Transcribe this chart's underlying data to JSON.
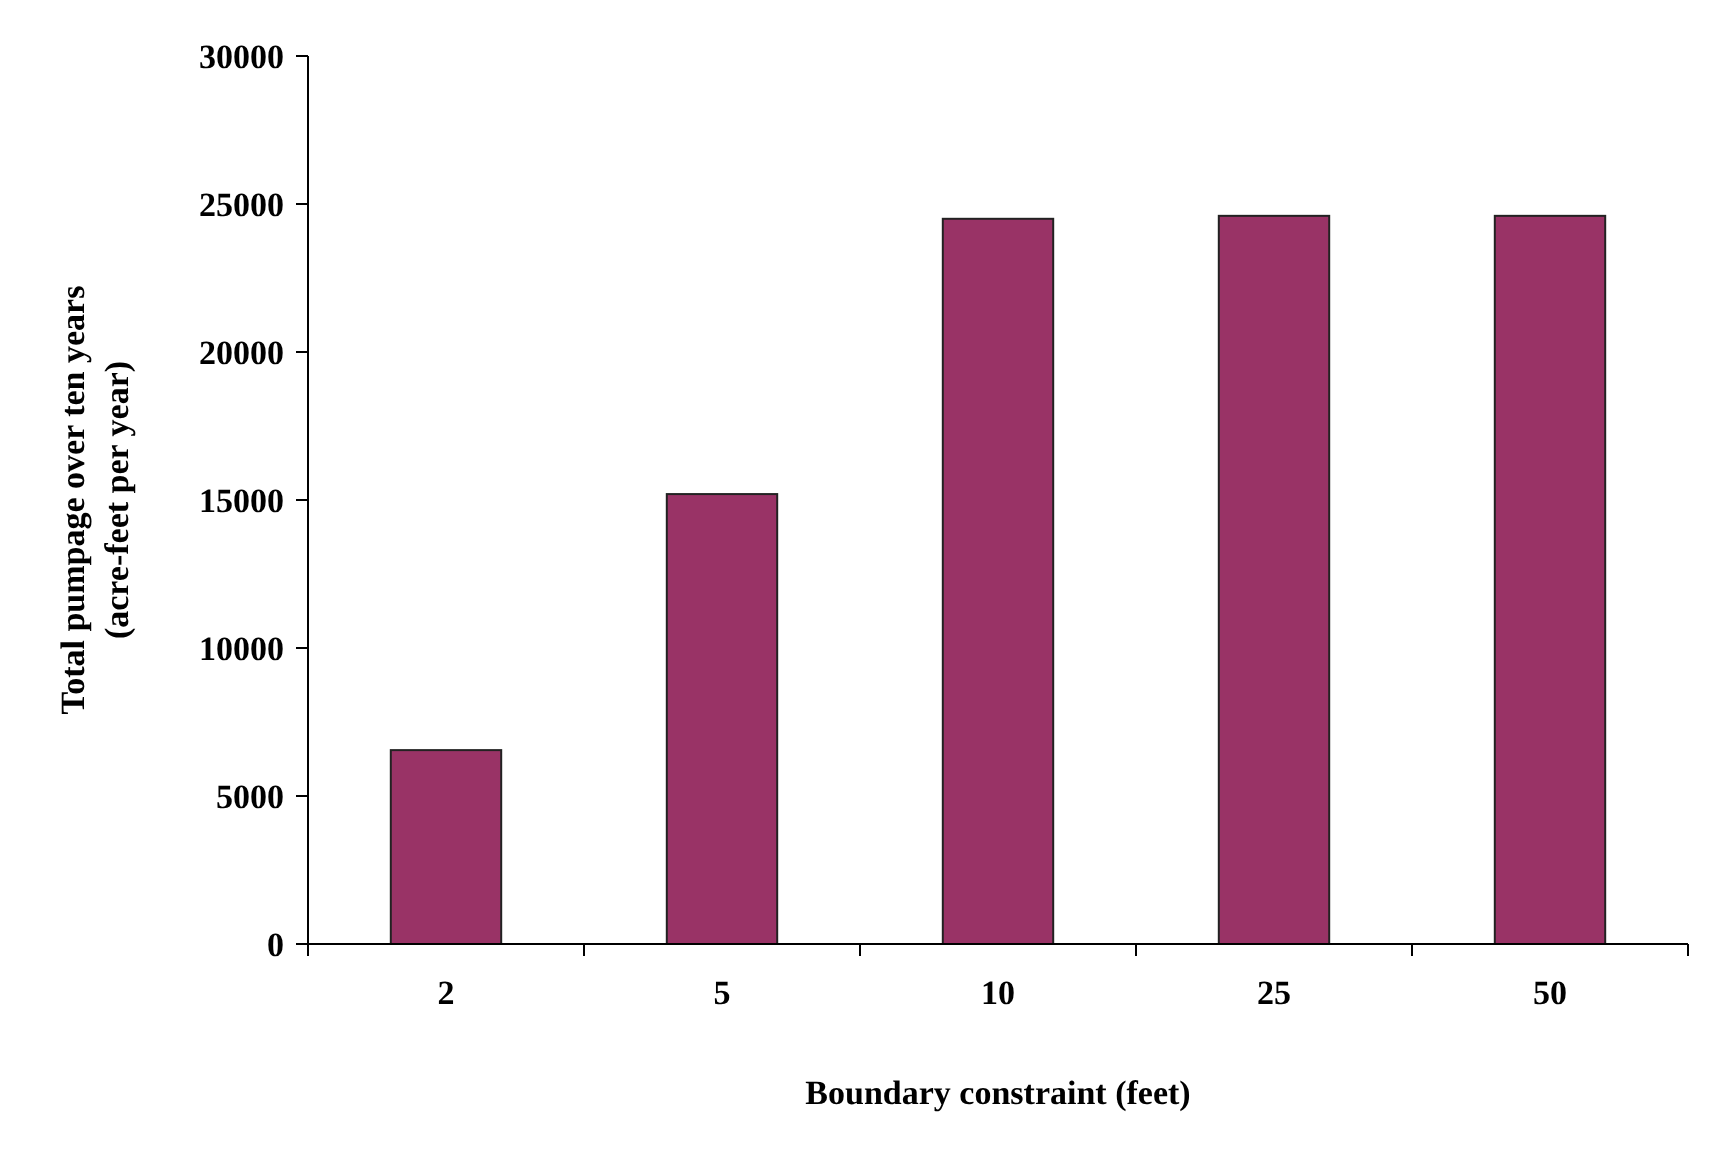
{
  "chart_data": {
    "type": "bar",
    "xlabel": "Boundary constraint (feet)",
    "ylabel": "Total pumpage over ten years\n(acre-feet per year)",
    "categories": [
      "2",
      "5",
      "10",
      "25",
      "50"
    ],
    "values": [
      6550,
      15200,
      24500,
      24600,
      24600
    ],
    "color": "#993366",
    "ylim": [
      0,
      30000
    ],
    "yticks": [
      0,
      5000,
      10000,
      15000,
      20000,
      25000,
      30000
    ],
    "grid": false
  }
}
